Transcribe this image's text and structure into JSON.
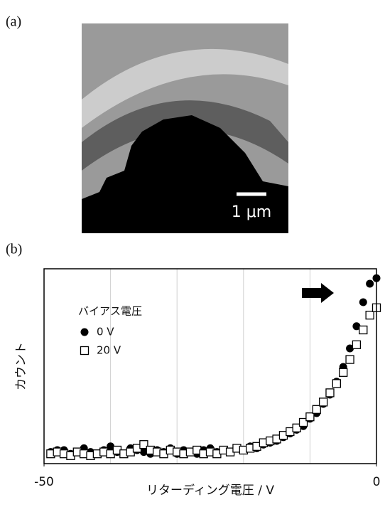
{
  "panel_a": {
    "label": "(a)",
    "scale_bar": "1 μm"
  },
  "panel_b_label": "(b)",
  "chart_data": {
    "type": "scatter",
    "xlabel": "リターディング電圧 / V",
    "ylabel": "カウント",
    "legend_title": "バイアス電圧",
    "legend_position": "upper left",
    "xlim": [
      -50,
      0
    ],
    "xticks": [
      -50,
      0
    ],
    "x_gridlines": [
      -40,
      -30,
      -20,
      -10
    ],
    "grid": true,
    "ylim": [
      0,
      100
    ],
    "x": [
      -49,
      -48,
      -47,
      -46,
      -45,
      -44,
      -43,
      -42,
      -41,
      -40,
      -39,
      -38,
      -37,
      -36,
      -35,
      -34,
      -33,
      -32,
      -31,
      -30,
      -29,
      -28,
      -27,
      -26,
      -25,
      -24,
      -23,
      -22,
      -21,
      -20,
      -19,
      -18,
      -17,
      -16,
      -15,
      -14,
      -13,
      -12,
      -11,
      -10,
      -9,
      -8,
      -7,
      -6,
      -5,
      -4,
      -3,
      -2,
      -1,
      0
    ],
    "series": [
      {
        "name": "0 V",
        "marker": "circle",
        "color": "#000000",
        "values": [
          4,
          5,
          5,
          3,
          4,
          6,
          4,
          3,
          5,
          7,
          4,
          3,
          6,
          5,
          4,
          3,
          5,
          4,
          6,
          3,
          5,
          4,
          3,
          5,
          6,
          4,
          5,
          4,
          6,
          5,
          7,
          6,
          8,
          9,
          10,
          12,
          14,
          16,
          18,
          22,
          25,
          30,
          35,
          42,
          50,
          60,
          72,
          85,
          95,
          98
        ]
      },
      {
        "name": "20 V",
        "marker": "square",
        "color": "#000000",
        "values": [
          3,
          4,
          3,
          2,
          4,
          3,
          2,
          3,
          4,
          3,
          5,
          3,
          4,
          6,
          8,
          5,
          4,
          3,
          5,
          4,
          3,
          4,
          5,
          3,
          4,
          3,
          5,
          4,
          6,
          5,
          6,
          7,
          9,
          10,
          11,
          13,
          15,
          17,
          20,
          23,
          27,
          31,
          36,
          41,
          47,
          54,
          62,
          70,
          78,
          82
        ]
      }
    ]
  }
}
